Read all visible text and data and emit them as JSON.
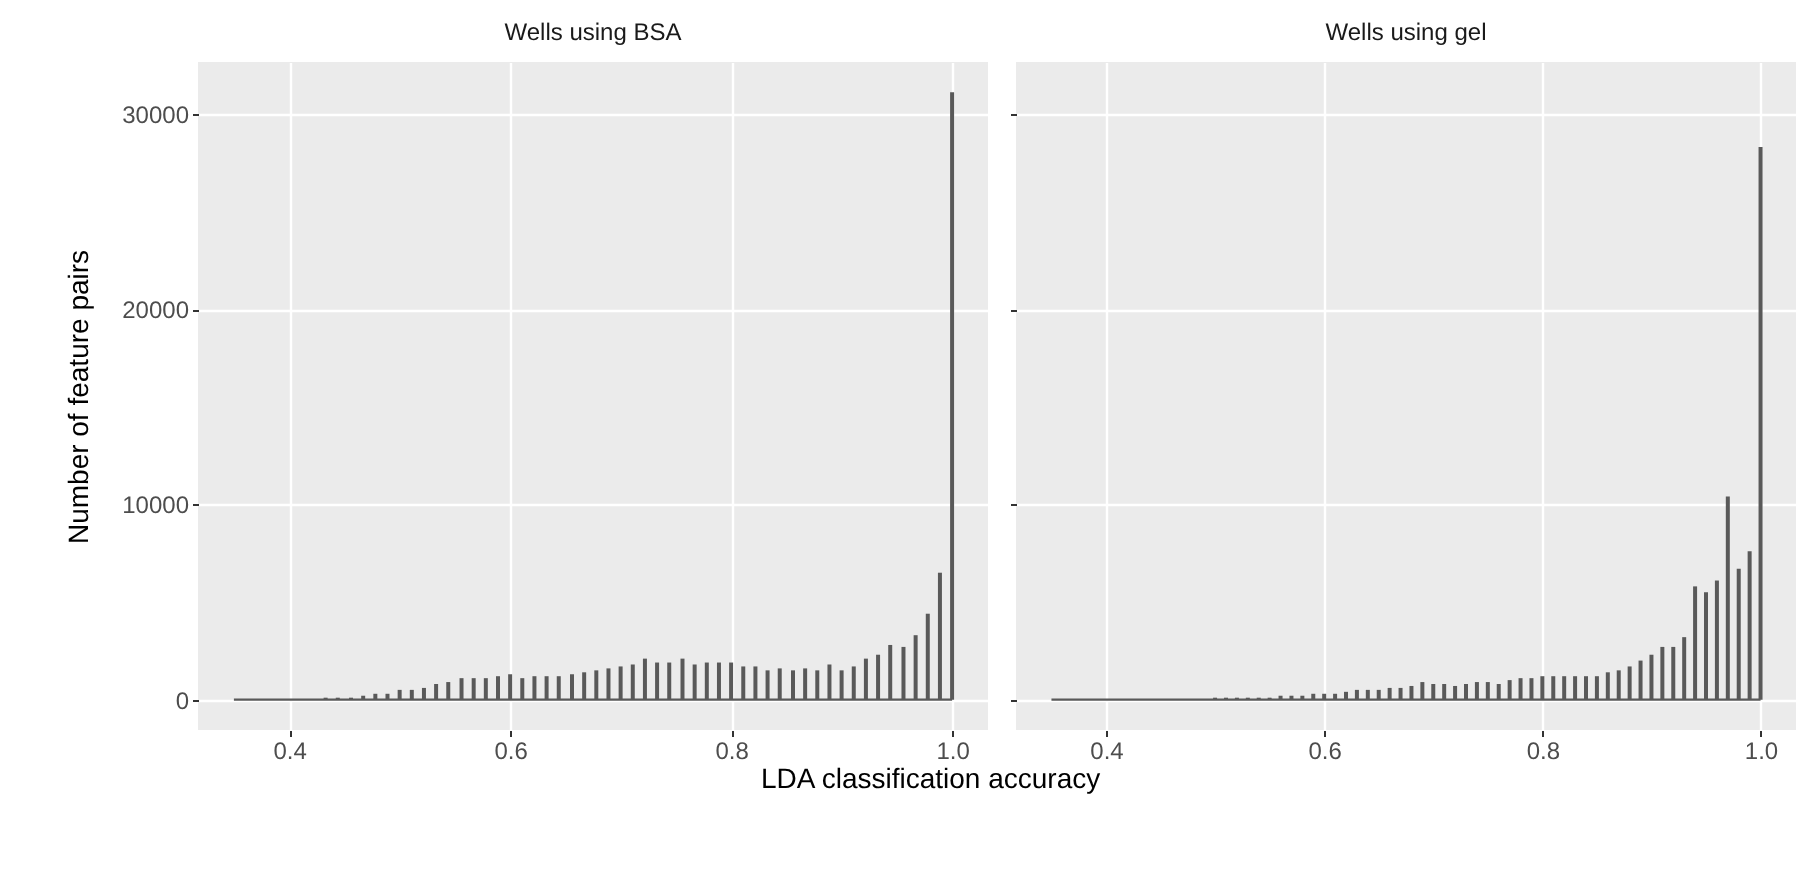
{
  "chart_data": [
    {
      "type": "bar",
      "title": "Wells using BSA",
      "ylabel": "Number of feature pairs",
      "xlabel": "LDA classification accuracy",
      "x": [
        0.35,
        0.356,
        0.367,
        0.378,
        0.389,
        0.4,
        0.411,
        0.422,
        0.433,
        0.444,
        0.456,
        0.467,
        0.478,
        0.489,
        0.5,
        0.511,
        0.522,
        0.533,
        0.544,
        0.556,
        0.567,
        0.578,
        0.589,
        0.6,
        0.611,
        0.622,
        0.633,
        0.644,
        0.656,
        0.667,
        0.678,
        0.689,
        0.7,
        0.711,
        0.722,
        0.733,
        0.744,
        0.756,
        0.767,
        0.778,
        0.789,
        0.8,
        0.811,
        0.822,
        0.833,
        0.844,
        0.856,
        0.867,
        0.878,
        0.889,
        0.9,
        0.911,
        0.922,
        0.933,
        0.944,
        0.956,
        0.967,
        0.978,
        0.989,
        1
      ],
      "series": [
        {
          "color": "#595959",
          "values": [
            0,
            0,
            0,
            0,
            0,
            0,
            0,
            0,
            100,
            100,
            100,
            200,
            300,
            300,
            500,
            500,
            600,
            800,
            900,
            1100,
            1100,
            1100,
            1200,
            1300,
            1100,
            1200,
            1200,
            1200,
            1300,
            1400,
            1500,
            1600,
            1700,
            1800,
            2100,
            1900,
            1900,
            2100,
            1800,
            1900,
            1900,
            1900,
            1700,
            1700,
            1500,
            1600,
            1500,
            1600,
            1500,
            1800,
            1500,
            1700,
            2100,
            2300,
            2800,
            2700,
            3300,
            4400,
            6500,
            31100
          ]
        }
      ],
      "xlim": [
        0.3175,
        1.0325
      ],
      "xticks": [
        0.4,
        0.6,
        0.8,
        {
          "value": 1,
          "label": "1.0"
        }
      ],
      "ylim": [
        -1555,
        32655
      ],
      "yticks": [
        0,
        10000,
        20000,
        30000
      ],
      "grid": true
    },
    {
      "type": "bar",
      "title": "Wells using gel",
      "x": [
        0.35,
        0.36,
        0.37,
        0.38,
        0.39,
        0.4,
        0.41,
        0.42,
        0.43,
        0.44,
        0.45,
        0.46,
        0.47,
        0.48,
        0.49,
        0.5,
        0.51,
        0.52,
        0.53,
        0.54,
        0.55,
        0.56,
        0.57,
        0.58,
        0.59,
        0.6,
        0.61,
        0.62,
        0.63,
        0.64,
        0.65,
        0.66,
        0.67,
        0.68,
        0.69,
        0.7,
        0.71,
        0.72,
        0.73,
        0.74,
        0.75,
        0.76,
        0.77,
        0.78,
        0.79,
        0.8,
        0.81,
        0.82,
        0.83,
        0.84,
        0.85,
        0.86,
        0.87,
        0.88,
        0.89,
        0.9,
        0.91,
        0.92,
        0.93,
        0.94,
        0.95,
        0.96,
        0.97,
        0.98,
        0.99,
        1
      ],
      "series": [
        {
          "color": "#595959",
          "values": [
            0,
            0,
            0,
            0,
            0,
            0,
            0,
            0,
            0,
            0,
            0,
            0,
            0,
            0,
            0,
            100,
            100,
            100,
            100,
            100,
            100,
            200,
            200,
            200,
            300,
            300,
            300,
            400,
            500,
            500,
            500,
            600,
            600,
            700,
            900,
            800,
            800,
            700,
            800,
            900,
            900,
            800,
            1000,
            1100,
            1100,
            1200,
            1200,
            1200,
            1200,
            1200,
            1200,
            1400,
            1500,
            1700,
            2000,
            2300,
            2700,
            2700,
            3200,
            5800,
            5500,
            6100,
            10400,
            6700,
            7600,
            28300
          ]
        }
      ],
      "xlim": [
        0.3175,
        1.0325
      ],
      "xticks": [
        0.4,
        0.6,
        0.8,
        {
          "value": 1,
          "label": "1.0"
        }
      ],
      "ylim": [
        -1555,
        32655
      ],
      "yticks": [
        0,
        10000,
        20000,
        30000
      ],
      "grid": true,
      "tick_labels": "x"
    }
  ]
}
